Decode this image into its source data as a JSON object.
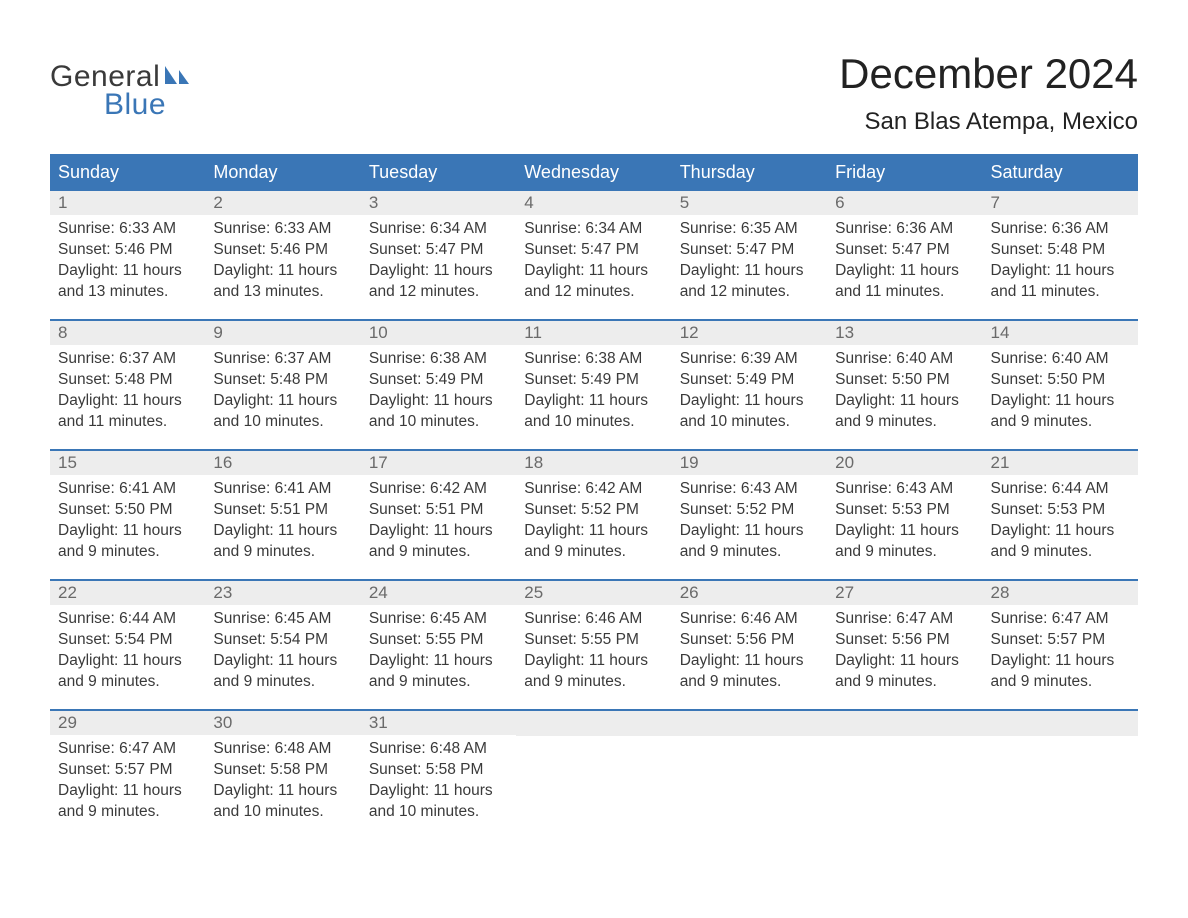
{
  "logo": {
    "text_general": "General",
    "text_blue": "Blue",
    "icon_color": "#3a76b6"
  },
  "title": "December 2024",
  "location": "San Blas Atempa, Mexico",
  "colors": {
    "header_bg": "#3a76b6",
    "header_text": "#ffffff",
    "day_number_bg": "#ededed",
    "day_number_text": "#6a6a6a",
    "body_text": "#3a3a3a",
    "row_border": "#3a76b6",
    "page_bg": "#ffffff"
  },
  "weekdays": [
    "Sunday",
    "Monday",
    "Tuesday",
    "Wednesday",
    "Thursday",
    "Friday",
    "Saturday"
  ],
  "weeks": [
    [
      {
        "day": "1",
        "sunrise": "6:33 AM",
        "sunset": "5:46 PM",
        "daylight": "11 hours and 13 minutes."
      },
      {
        "day": "2",
        "sunrise": "6:33 AM",
        "sunset": "5:46 PM",
        "daylight": "11 hours and 13 minutes."
      },
      {
        "day": "3",
        "sunrise": "6:34 AM",
        "sunset": "5:47 PM",
        "daylight": "11 hours and 12 minutes."
      },
      {
        "day": "4",
        "sunrise": "6:34 AM",
        "sunset": "5:47 PM",
        "daylight": "11 hours and 12 minutes."
      },
      {
        "day": "5",
        "sunrise": "6:35 AM",
        "sunset": "5:47 PM",
        "daylight": "11 hours and 12 minutes."
      },
      {
        "day": "6",
        "sunrise": "6:36 AM",
        "sunset": "5:47 PM",
        "daylight": "11 hours and 11 minutes."
      },
      {
        "day": "7",
        "sunrise": "6:36 AM",
        "sunset": "5:48 PM",
        "daylight": "11 hours and 11 minutes."
      }
    ],
    [
      {
        "day": "8",
        "sunrise": "6:37 AM",
        "sunset": "5:48 PM",
        "daylight": "11 hours and 11 minutes."
      },
      {
        "day": "9",
        "sunrise": "6:37 AM",
        "sunset": "5:48 PM",
        "daylight": "11 hours and 10 minutes."
      },
      {
        "day": "10",
        "sunrise": "6:38 AM",
        "sunset": "5:49 PM",
        "daylight": "11 hours and 10 minutes."
      },
      {
        "day": "11",
        "sunrise": "6:38 AM",
        "sunset": "5:49 PM",
        "daylight": "11 hours and 10 minutes."
      },
      {
        "day": "12",
        "sunrise": "6:39 AM",
        "sunset": "5:49 PM",
        "daylight": "11 hours and 10 minutes."
      },
      {
        "day": "13",
        "sunrise": "6:40 AM",
        "sunset": "5:50 PM",
        "daylight": "11 hours and 9 minutes."
      },
      {
        "day": "14",
        "sunrise": "6:40 AM",
        "sunset": "5:50 PM",
        "daylight": "11 hours and 9 minutes."
      }
    ],
    [
      {
        "day": "15",
        "sunrise": "6:41 AM",
        "sunset": "5:50 PM",
        "daylight": "11 hours and 9 minutes."
      },
      {
        "day": "16",
        "sunrise": "6:41 AM",
        "sunset": "5:51 PM",
        "daylight": "11 hours and 9 minutes."
      },
      {
        "day": "17",
        "sunrise": "6:42 AM",
        "sunset": "5:51 PM",
        "daylight": "11 hours and 9 minutes."
      },
      {
        "day": "18",
        "sunrise": "6:42 AM",
        "sunset": "5:52 PM",
        "daylight": "11 hours and 9 minutes."
      },
      {
        "day": "19",
        "sunrise": "6:43 AM",
        "sunset": "5:52 PM",
        "daylight": "11 hours and 9 minutes."
      },
      {
        "day": "20",
        "sunrise": "6:43 AM",
        "sunset": "5:53 PM",
        "daylight": "11 hours and 9 minutes."
      },
      {
        "day": "21",
        "sunrise": "6:44 AM",
        "sunset": "5:53 PM",
        "daylight": "11 hours and 9 minutes."
      }
    ],
    [
      {
        "day": "22",
        "sunrise": "6:44 AM",
        "sunset": "5:54 PM",
        "daylight": "11 hours and 9 minutes."
      },
      {
        "day": "23",
        "sunrise": "6:45 AM",
        "sunset": "5:54 PM",
        "daylight": "11 hours and 9 minutes."
      },
      {
        "day": "24",
        "sunrise": "6:45 AM",
        "sunset": "5:55 PM",
        "daylight": "11 hours and 9 minutes."
      },
      {
        "day": "25",
        "sunrise": "6:46 AM",
        "sunset": "5:55 PM",
        "daylight": "11 hours and 9 minutes."
      },
      {
        "day": "26",
        "sunrise": "6:46 AM",
        "sunset": "5:56 PM",
        "daylight": "11 hours and 9 minutes."
      },
      {
        "day": "27",
        "sunrise": "6:47 AM",
        "sunset": "5:56 PM",
        "daylight": "11 hours and 9 minutes."
      },
      {
        "day": "28",
        "sunrise": "6:47 AM",
        "sunset": "5:57 PM",
        "daylight": "11 hours and 9 minutes."
      }
    ],
    [
      {
        "day": "29",
        "sunrise": "6:47 AM",
        "sunset": "5:57 PM",
        "daylight": "11 hours and 9 minutes."
      },
      {
        "day": "30",
        "sunrise": "6:48 AM",
        "sunset": "5:58 PM",
        "daylight": "11 hours and 10 minutes."
      },
      {
        "day": "31",
        "sunrise": "6:48 AM",
        "sunset": "5:58 PM",
        "daylight": "11 hours and 10 minutes."
      },
      null,
      null,
      null,
      null
    ]
  ],
  "labels": {
    "sunrise": "Sunrise:",
    "sunset": "Sunset:",
    "daylight": "Daylight:"
  }
}
